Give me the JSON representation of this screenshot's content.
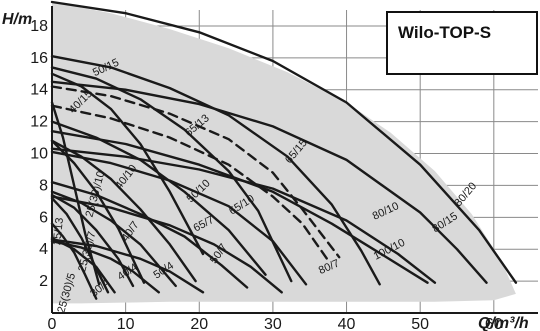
{
  "chart_data": {
    "type": "line",
    "title": "Wilo-TOP-S",
    "ylabel": "H/m",
    "xlabel": "Q/m³/h",
    "xlim": [
      0,
      66
    ],
    "ylim": [
      0,
      19
    ],
    "xticks": [
      0,
      10,
      20,
      30,
      40,
      50,
      60
    ],
    "yticks": [
      2,
      4,
      6,
      8,
      10,
      12,
      14,
      16,
      18
    ],
    "grid": true,
    "colors": {
      "envelope": "#d9d9d9",
      "curve": "#1a1a1a",
      "grid": "#8a8a8a"
    },
    "envelope": {
      "x": [
        0,
        8,
        16,
        24,
        32,
        40,
        46,
        52,
        57,
        61,
        63,
        60,
        52,
        40,
        28,
        16,
        4,
        0
      ],
      "y": [
        19.5,
        18.8,
        17.8,
        16.6,
        15.1,
        13.2,
        11.3,
        8.9,
        6.2,
        3.3,
        1.2,
        0.8,
        0.7,
        0.7,
        0.7,
        0.7,
        0.6,
        0.6
      ]
    },
    "series": [
      {
        "name": "80/20",
        "style": "solid",
        "x": [
          0,
          10,
          20,
          30,
          40,
          50,
          58,
          63
        ],
        "y": [
          19.5,
          18.8,
          17.6,
          15.8,
          13.2,
          9.3,
          5.2,
          1.9
        ]
      },
      {
        "name": "80/15",
        "style": "solid",
        "x": [
          0,
          10,
          20,
          30,
          40,
          50,
          55,
          59
        ],
        "y": [
          14.5,
          14.0,
          13.1,
          11.7,
          9.6,
          6.3,
          4.0,
          1.9
        ]
      },
      {
        "name": "80/10",
        "style": "solid",
        "x": [
          0,
          10,
          20,
          30,
          40,
          47,
          52
        ],
        "y": [
          10.3,
          9.8,
          9.0,
          7.8,
          5.8,
          3.7,
          1.9
        ]
      },
      {
        "name": "100/10",
        "style": "solid",
        "x": [
          0,
          10,
          20,
          30,
          38,
          44,
          51
        ],
        "y": [
          11.4,
          10.6,
          9.3,
          7.6,
          5.6,
          3.9,
          1.9
        ]
      },
      {
        "name": "80/7",
        "style": "dashed",
        "x": [
          0,
          8,
          16,
          24,
          30,
          34,
          39
        ],
        "y": [
          14.2,
          13.6,
          12.5,
          10.9,
          8.8,
          6.5,
          3.5
        ]
      },
      {
        "name": "65/15",
        "style": "solid",
        "x": [
          0,
          8,
          16,
          24,
          32,
          38,
          42,
          44.5
        ],
        "y": [
          16.1,
          15.4,
          14.1,
          12.4,
          9.8,
          6.8,
          3.9,
          1.8
        ]
      },
      {
        "name": "65/13",
        "style": "dashed",
        "x": [
          0,
          8,
          16,
          24,
          30,
          34,
          37.5
        ],
        "y": [
          13.0,
          12.2,
          11.0,
          9.3,
          7.3,
          5.6,
          3.3
        ]
      },
      {
        "name": "65/10",
        "style": "solid",
        "x": [
          0,
          8,
          16,
          24,
          30,
          34.5
        ],
        "y": [
          10.1,
          9.4,
          8.3,
          6.7,
          4.5,
          1.8
        ]
      },
      {
        "name": "65/7",
        "style": "solid",
        "x": [
          0,
          8,
          16,
          22,
          27,
          31.2
        ],
        "y": [
          7.3,
          6.6,
          5.5,
          4.3,
          2.9,
          1.3
        ]
      },
      {
        "name": "50/15",
        "style": "solid",
        "x": [
          0,
          6,
          12,
          18,
          24,
          28,
          32.5
        ],
        "y": [
          15.4,
          14.7,
          13.4,
          11.5,
          8.9,
          6.4,
          2.0
        ]
      },
      {
        "name": "50/10",
        "style": "solid",
        "x": [
          0,
          6,
          12,
          18,
          24,
          29
        ],
        "y": [
          12.0,
          11.0,
          9.6,
          7.6,
          5.2,
          2.4
        ]
      },
      {
        "name": "50/7",
        "style": "solid",
        "x": [
          0,
          6,
          12,
          18,
          23,
          26.5
        ],
        "y": [
          8.2,
          7.4,
          6.2,
          4.8,
          3.0,
          1.6
        ]
      },
      {
        "name": "50/4",
        "style": "solid",
        "x": [
          0,
          6,
          12,
          16,
          20.5
        ],
        "y": [
          4.6,
          4.2,
          3.4,
          2.6,
          1.3
        ]
      },
      {
        "name": "40/15",
        "style": "solid",
        "x": [
          0,
          4,
          8,
          12,
          16,
          20.5
        ],
        "y": [
          15.0,
          14.2,
          12.8,
          10.6,
          7.6,
          3.7
        ]
      },
      {
        "name": "40/10",
        "style": "solid",
        "x": [
          0,
          4,
          8,
          12,
          16,
          19.5
        ],
        "y": [
          10.8,
          9.8,
          8.4,
          6.5,
          4.3,
          2.0
        ]
      },
      {
        "name": "40/7",
        "style": "solid",
        "x": [
          0,
          4,
          8,
          12,
          16.8
        ],
        "y": [
          7.6,
          6.9,
          5.8,
          4.3,
          1.7
        ]
      },
      {
        "name": "40/4",
        "style": "solid",
        "x": [
          0,
          4,
          8,
          11,
          14.5
        ],
        "y": [
          4.5,
          4.1,
          3.4,
          2.6,
          1.3
        ]
      },
      {
        "name": "30/10",
        "style": "solid",
        "x": [
          0,
          3,
          6,
          9,
          12.5
        ],
        "y": [
          10.8,
          9.4,
          7.6,
          5.3,
          1.9
        ]
      },
      {
        "name": "30/7",
        "style": "solid",
        "x": [
          0,
          3,
          6,
          9,
          11
        ],
        "y": [
          7.4,
          6.6,
          5.2,
          3.4,
          1.7
        ]
      },
      {
        "name": "30/4",
        "style": "solid",
        "x": [
          0,
          3,
          6,
          8.5
        ],
        "y": [
          4.7,
          4.0,
          2.9,
          1.3
        ]
      },
      {
        "name": "25/13",
        "style": "solid",
        "x": [
          0,
          1.5,
          3,
          4.5,
          6.4
        ],
        "y": [
          13.2,
          11.0,
          8.0,
          5.0,
          1.8
        ]
      },
      {
        "name": "25/7",
        "style": "solid",
        "x": [
          0,
          2,
          4,
          6,
          7.6
        ],
        "y": [
          7.2,
          6.2,
          4.7,
          2.8,
          1.3
        ]
      },
      {
        "name": "25/5",
        "style": "solid",
        "x": [
          0,
          1.5,
          3,
          4.5,
          6
        ],
        "y": [
          5.6,
          4.8,
          3.8,
          2.4,
          0.9
        ]
      }
    ]
  },
  "labels": [
    {
      "series": "80/20",
      "text": "80/20",
      "x": 56.5,
      "y": 7.3,
      "angle": -50
    },
    {
      "series": "80/15",
      "text": "80/15",
      "x": 53.6,
      "y": 5.5,
      "angle": -33
    },
    {
      "series": "80/10",
      "text": "80/10",
      "x": 45.5,
      "y": 6.2,
      "angle": -25
    },
    {
      "series": "100/10",
      "text": "100/10",
      "x": 46.0,
      "y": 3.8,
      "angle": -27
    },
    {
      "series": "80/7",
      "text": "80/7",
      "x": 37.8,
      "y": 2.7,
      "angle": -24
    },
    {
      "series": "65/15",
      "text": "65/15",
      "x": 33.5,
      "y": 10.0,
      "angle": -50
    },
    {
      "series": "65/13",
      "text": "65/13",
      "x": 20.0,
      "y": 11.6,
      "angle": -40
    },
    {
      "series": "65/10",
      "text": "65/10",
      "x": 26.0,
      "y": 6.6,
      "angle": -32
    },
    {
      "series": "65/7",
      "text": "65/7",
      "x": 20.8,
      "y": 5.4,
      "angle": -28
    },
    {
      "series": "50/15",
      "text": "50/15",
      "x": 7.5,
      "y": 15.2,
      "angle": -25
    },
    {
      "series": "50/10",
      "text": "50/10",
      "x": 20.2,
      "y": 7.5,
      "angle": -44
    },
    {
      "series": "50/7",
      "text": "50/7",
      "x": 23.0,
      "y": 3.6,
      "angle": -55
    },
    {
      "series": "50/4",
      "text": "50/4",
      "x": 15.4,
      "y": 2.5,
      "angle": -33
    },
    {
      "series": "40/15",
      "text": "40/15",
      "x": 4.2,
      "y": 13.1,
      "angle": -45
    },
    {
      "series": "40/10",
      "text": "40/10",
      "x": 10.4,
      "y": 8.4,
      "angle": -52
    },
    {
      "series": "40/7",
      "text": "40/7",
      "x": 11.0,
      "y": 5.0,
      "angle": -55
    },
    {
      "series": "40/4",
      "text": "40/4",
      "x": 10.5,
      "y": 2.4,
      "angle": -33
    },
    {
      "series": "30/10",
      "text": "25(30)/10",
      "x": 6.3,
      "y": 7.4,
      "angle": -75
    },
    {
      "series": "30/7",
      "text": "25(30)/7",
      "x": 5.2,
      "y": 3.8,
      "angle": -75
    },
    {
      "series": "30/4",
      "text": "30/4",
      "x": 6.8,
      "y": 1.4,
      "angle": -40
    },
    {
      "series": "25/13",
      "text": "25/13",
      "x": 1.3,
      "y": 5.1,
      "angle": -84
    },
    {
      "series": "25/5",
      "text": "25(30)/5",
      "x": 2.4,
      "y": 1.2,
      "angle": -74
    }
  ]
}
